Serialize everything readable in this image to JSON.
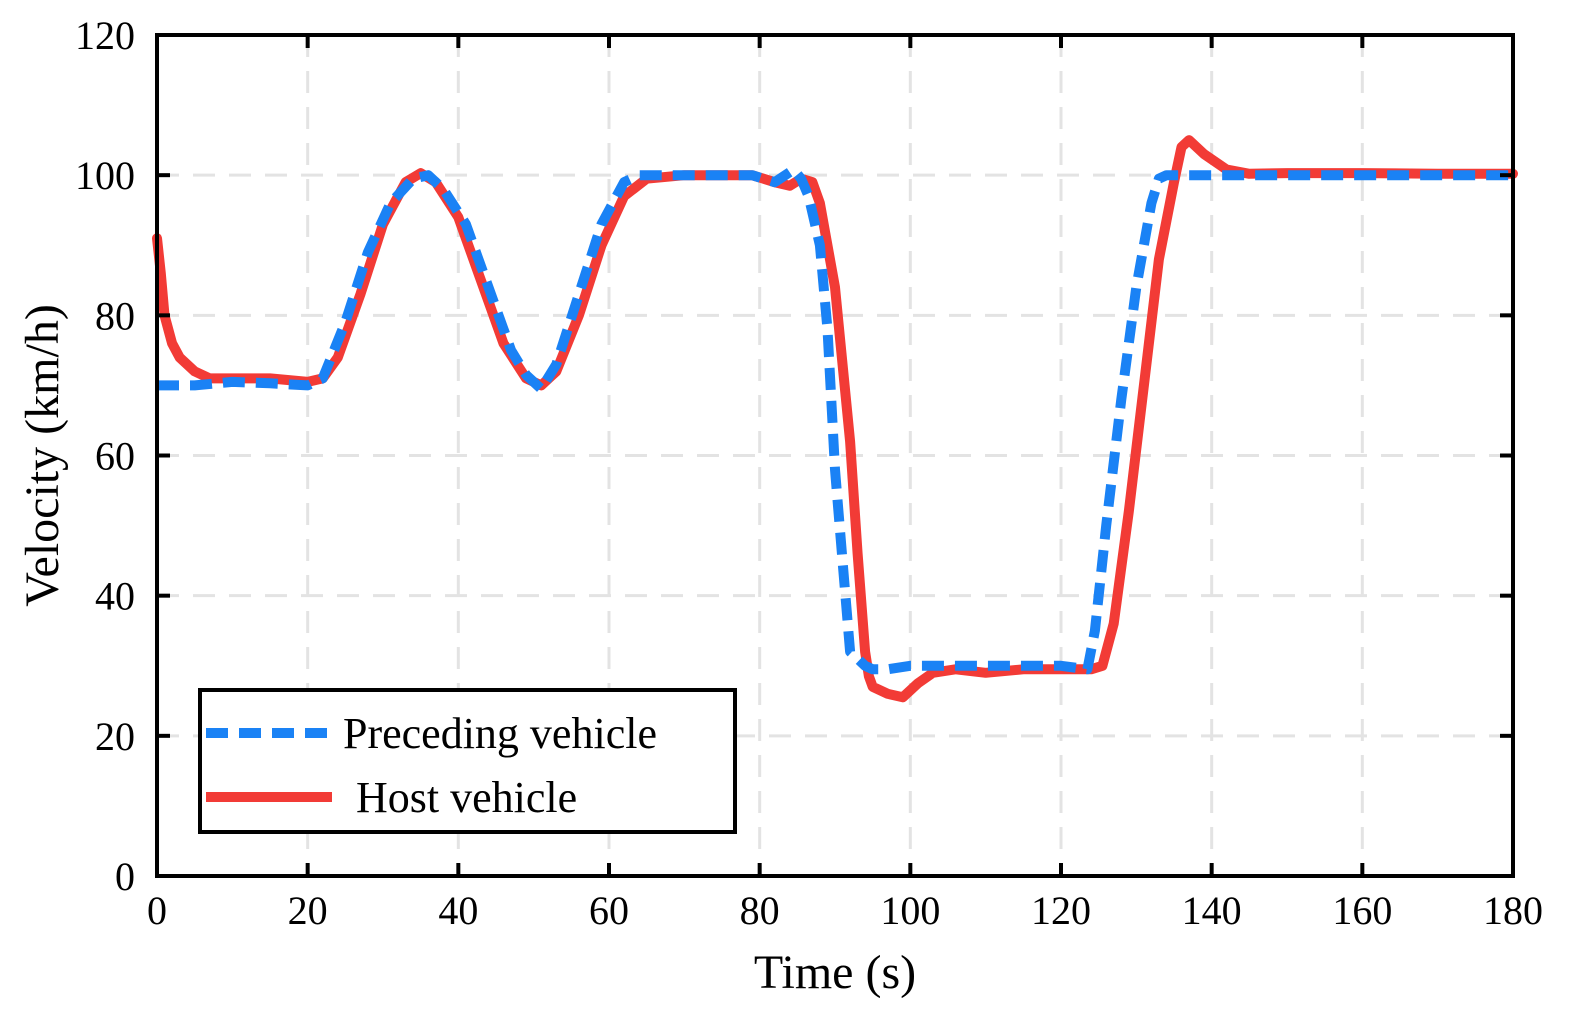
{
  "chart_data": {
    "type": "line",
    "title": "",
    "xlabel": "Time (s)",
    "ylabel": "Velocity (km/h)",
    "xlim": [
      0,
      180
    ],
    "ylim": [
      0,
      120
    ],
    "xticks": [
      0,
      20,
      40,
      60,
      80,
      100,
      120,
      140,
      160,
      180
    ],
    "yticks": [
      0,
      20,
      40,
      60,
      80,
      100,
      120
    ],
    "grid": true,
    "legend_position": "bottom-left",
    "series": [
      {
        "name": "Preceding vehicle",
        "style": "dashed",
        "color": "#1a82f5",
        "x": [
          0,
          5,
          10,
          15,
          20,
          22,
          25,
          28,
          31,
          34,
          36,
          38,
          41,
          44,
          47,
          49,
          51,
          53,
          56,
          59,
          62,
          64,
          66,
          70,
          75,
          79,
          82,
          84.5,
          85.5,
          86.5,
          88,
          89,
          90,
          91,
          92,
          94,
          95,
          97,
          100,
          104,
          108,
          115,
          120,
          123.5,
          124.5,
          126,
          128,
          130,
          132,
          133,
          134,
          136,
          140,
          150,
          160,
          170,
          180
        ],
        "y": [
          70,
          70,
          70.5,
          70.3,
          70.0,
          71,
          79,
          89,
          96,
          99.5,
          100,
          98,
          93,
          84,
          75,
          71.5,
          69.5,
          73,
          83,
          93,
          99,
          100,
          100,
          100,
          100,
          100,
          99,
          100.8,
          99.5,
          97,
          90,
          78,
          58,
          45,
          32,
          30,
          29.5,
          29.5,
          30,
          30,
          30,
          30,
          30,
          29.5,
          35,
          50,
          68,
          84,
          96,
          99.5,
          100,
          100,
          100,
          100,
          100,
          100,
          100
        ]
      },
      {
        "name": "Host vehicle",
        "style": "solid",
        "color": "#f23b36",
        "x": [
          0,
          0.5,
          1,
          2,
          3,
          5,
          7,
          10,
          15,
          20,
          22,
          24,
          27,
          30,
          33,
          35,
          37,
          40,
          43,
          46,
          49,
          51,
          53,
          56,
          59,
          62,
          65,
          70,
          75,
          79,
          82,
          84,
          85.5,
          87,
          88,
          90,
          92,
          93,
          94,
          94.5,
          95,
          97,
          99,
          101,
          103,
          106,
          110,
          115,
          120,
          124,
          125.5,
          127,
          129,
          131,
          133,
          135,
          136,
          137,
          139,
          142,
          145,
          150,
          160,
          170,
          180
        ],
        "y": [
          91,
          86,
          80,
          76,
          74,
          72,
          71,
          71,
          71,
          70.5,
          71,
          74,
          83,
          93,
          99,
          100.3,
          99,
          94,
          85,
          76,
          71,
          70,
          72,
          80,
          90,
          97,
          99.5,
          100,
          100,
          100,
          99,
          98.5,
          99.5,
          99,
          96,
          84,
          62,
          46,
          32,
          28.5,
          27,
          26,
          25.5,
          27.5,
          29,
          29.5,
          29,
          29.5,
          29.5,
          29.5,
          30,
          36,
          52,
          70,
          88,
          99,
          104,
          105,
          103,
          100.8,
          100.2,
          100.3,
          100.3,
          100.2,
          100.2
        ]
      }
    ]
  }
}
